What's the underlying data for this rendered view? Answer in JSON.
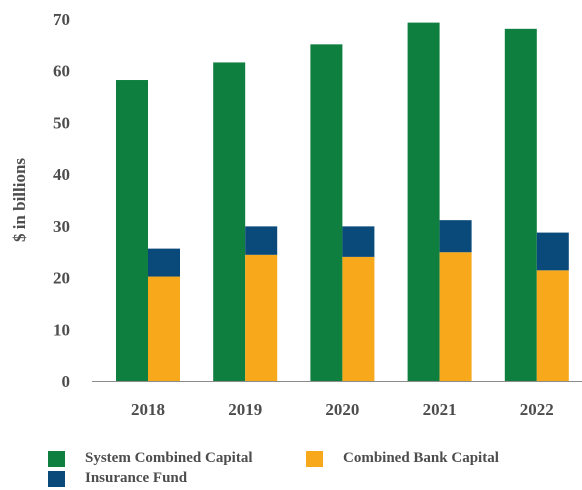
{
  "chart_data": {
    "type": "bar",
    "categories": [
      "2018",
      "2019",
      "2020",
      "2021",
      "2022"
    ],
    "ylabel": "$ in billions",
    "ylim": [
      0,
      70
    ],
    "yticks": [
      0,
      10,
      20,
      30,
      40,
      50,
      60,
      70
    ],
    "grid": false,
    "legend_position": "bottom",
    "series": [
      {
        "name": "System Combined Capital",
        "color": "#0f7f3f",
        "stack": "a",
        "values": [
          58.2,
          61.6,
          65.1,
          69.3,
          68.1
        ]
      },
      {
        "name": "Combined Bank Capital",
        "color": "#f7a81b",
        "stack": "b",
        "values": [
          20.2,
          24.4,
          24.0,
          24.9,
          21.4
        ]
      },
      {
        "name": "Insurance Fund",
        "color": "#0a4a7a",
        "stack": "b",
        "values": [
          5.4,
          5.5,
          5.9,
          6.2,
          7.3
        ]
      }
    ]
  }
}
